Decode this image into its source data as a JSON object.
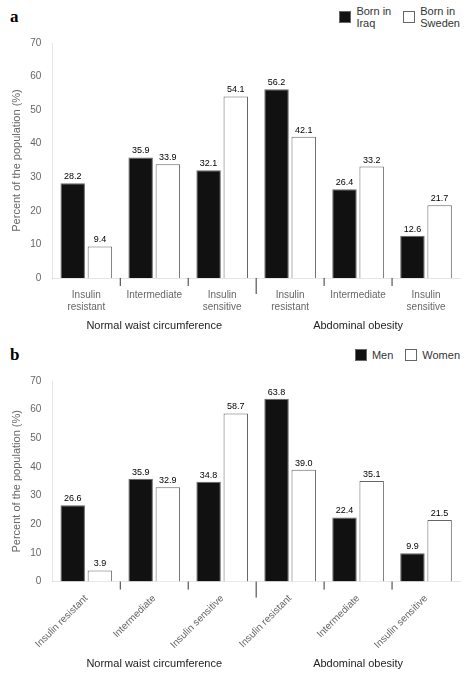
{
  "chart_data": [
    {
      "type": "bar",
      "title": "a",
      "groups": [
        "Normal waist circumference",
        "Abdominal obesity"
      ],
      "categories": [
        "Insulin\nresistant",
        "Intermediate",
        "Insulin\nsensitive",
        "Insulin\nresistant",
        "Intermediate",
        "Insulin\nsensitive"
      ],
      "series": [
        {
          "name": "Born in\nIraq",
          "color": "#111111",
          "values": [
            28.2,
            35.9,
            32.1,
            56.2,
            26.4,
            12.6
          ]
        },
        {
          "name": "Born in\nSweden",
          "color": "#ffffff",
          "values": [
            9.4,
            33.9,
            54.1,
            42.1,
            33.2,
            21.7
          ]
        }
      ],
      "ylabel": "Percent of the population (%)",
      "ylim": [
        0,
        70
      ],
      "yticks": [
        0,
        10,
        20,
        30,
        40,
        50,
        60,
        70
      ],
      "grid": false,
      "legend": "upper right",
      "data_labels": true
    },
    {
      "type": "bar",
      "title": "b",
      "groups": [
        "Normal waist circumference",
        "Abdominal obesity"
      ],
      "categories": [
        "Insulin resistant",
        "Intermediate",
        "Insulin sensitive",
        "Insulin resistant",
        "Intermediate",
        "Insulin sensitive"
      ],
      "series": [
        {
          "name": "Men",
          "color": "#111111",
          "values": [
            26.6,
            35.9,
            34.8,
            63.8,
            22.4,
            9.9
          ]
        },
        {
          "name": "Women",
          "color": "#ffffff",
          "values": [
            3.9,
            32.9,
            58.7,
            39.0,
            35.1,
            21.5
          ],
          "value_labels": [
            "3.9",
            "32.9",
            "58.7",
            "39.0",
            "35.1",
            "21.5"
          ]
        }
      ],
      "ylabel": "Percent of the population (%)",
      "ylim": [
        0,
        70
      ],
      "yticks": [
        0,
        10,
        20,
        30,
        40,
        50,
        60,
        70
      ],
      "grid": false,
      "legend": "upper right",
      "data_labels": true
    }
  ]
}
